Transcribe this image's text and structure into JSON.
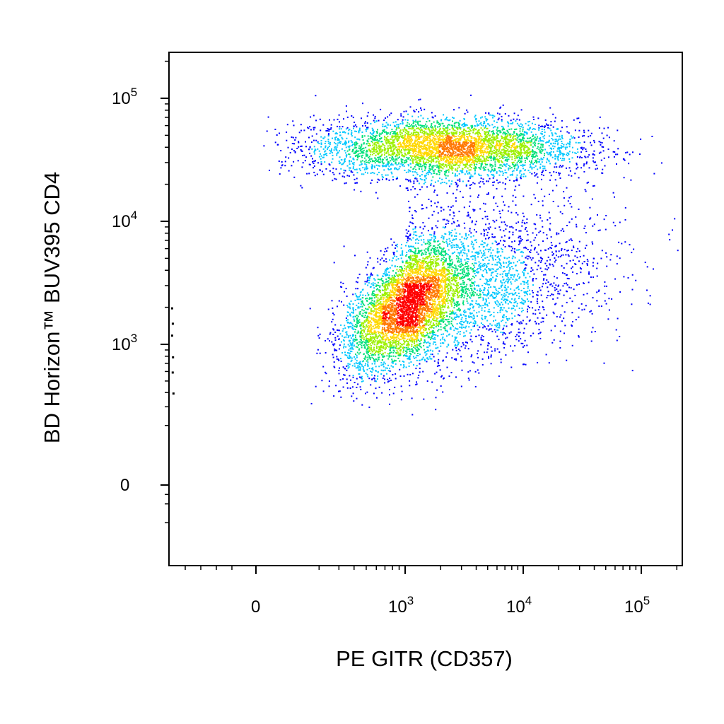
{
  "chart_data": {
    "type": "scatter",
    "style": "pseudocolor-density",
    "xlabel": "PE GITR (CD357)",
    "ylabel": "BD Horizon™ BUV395 CD4",
    "x_scale": "biexponential",
    "y_scale": "biexponential",
    "xlim": [
      -300,
      250000
    ],
    "ylim": [
      -300,
      250000
    ],
    "x_ticks": [
      {
        "value": 0,
        "base": "0",
        "exp": ""
      },
      {
        "value": 1000,
        "base": "10",
        "exp": "3"
      },
      {
        "value": 10000,
        "base": "10",
        "exp": "4"
      },
      {
        "value": 100000,
        "base": "10",
        "exp": "5"
      }
    ],
    "y_ticks": [
      {
        "value": 0,
        "base": "0",
        "exp": ""
      },
      {
        "value": 1000,
        "base": "10",
        "exp": "3"
      },
      {
        "value": 10000,
        "base": "10",
        "exp": "4"
      },
      {
        "value": 100000,
        "base": "10",
        "exp": "5"
      }
    ],
    "grid": false,
    "legend": "none",
    "density_colors": [
      "#0000ff",
      "#00c8ff",
      "#00e07a",
      "#9cf000",
      "#ffd800",
      "#ff7800",
      "#ff0000"
    ],
    "populations": [
      {
        "x_center": 2500,
        "y_center": 40000,
        "x_range": [
          300,
          150000
        ],
        "y_range": [
          20000,
          100000
        ],
        "peak_density": "high"
      },
      {
        "x_center": 900,
        "y_center": 2000,
        "x_range": [
          200,
          80000
        ],
        "y_range": [
          400,
          20000
        ],
        "peak_density": "very-high"
      }
    ]
  }
}
